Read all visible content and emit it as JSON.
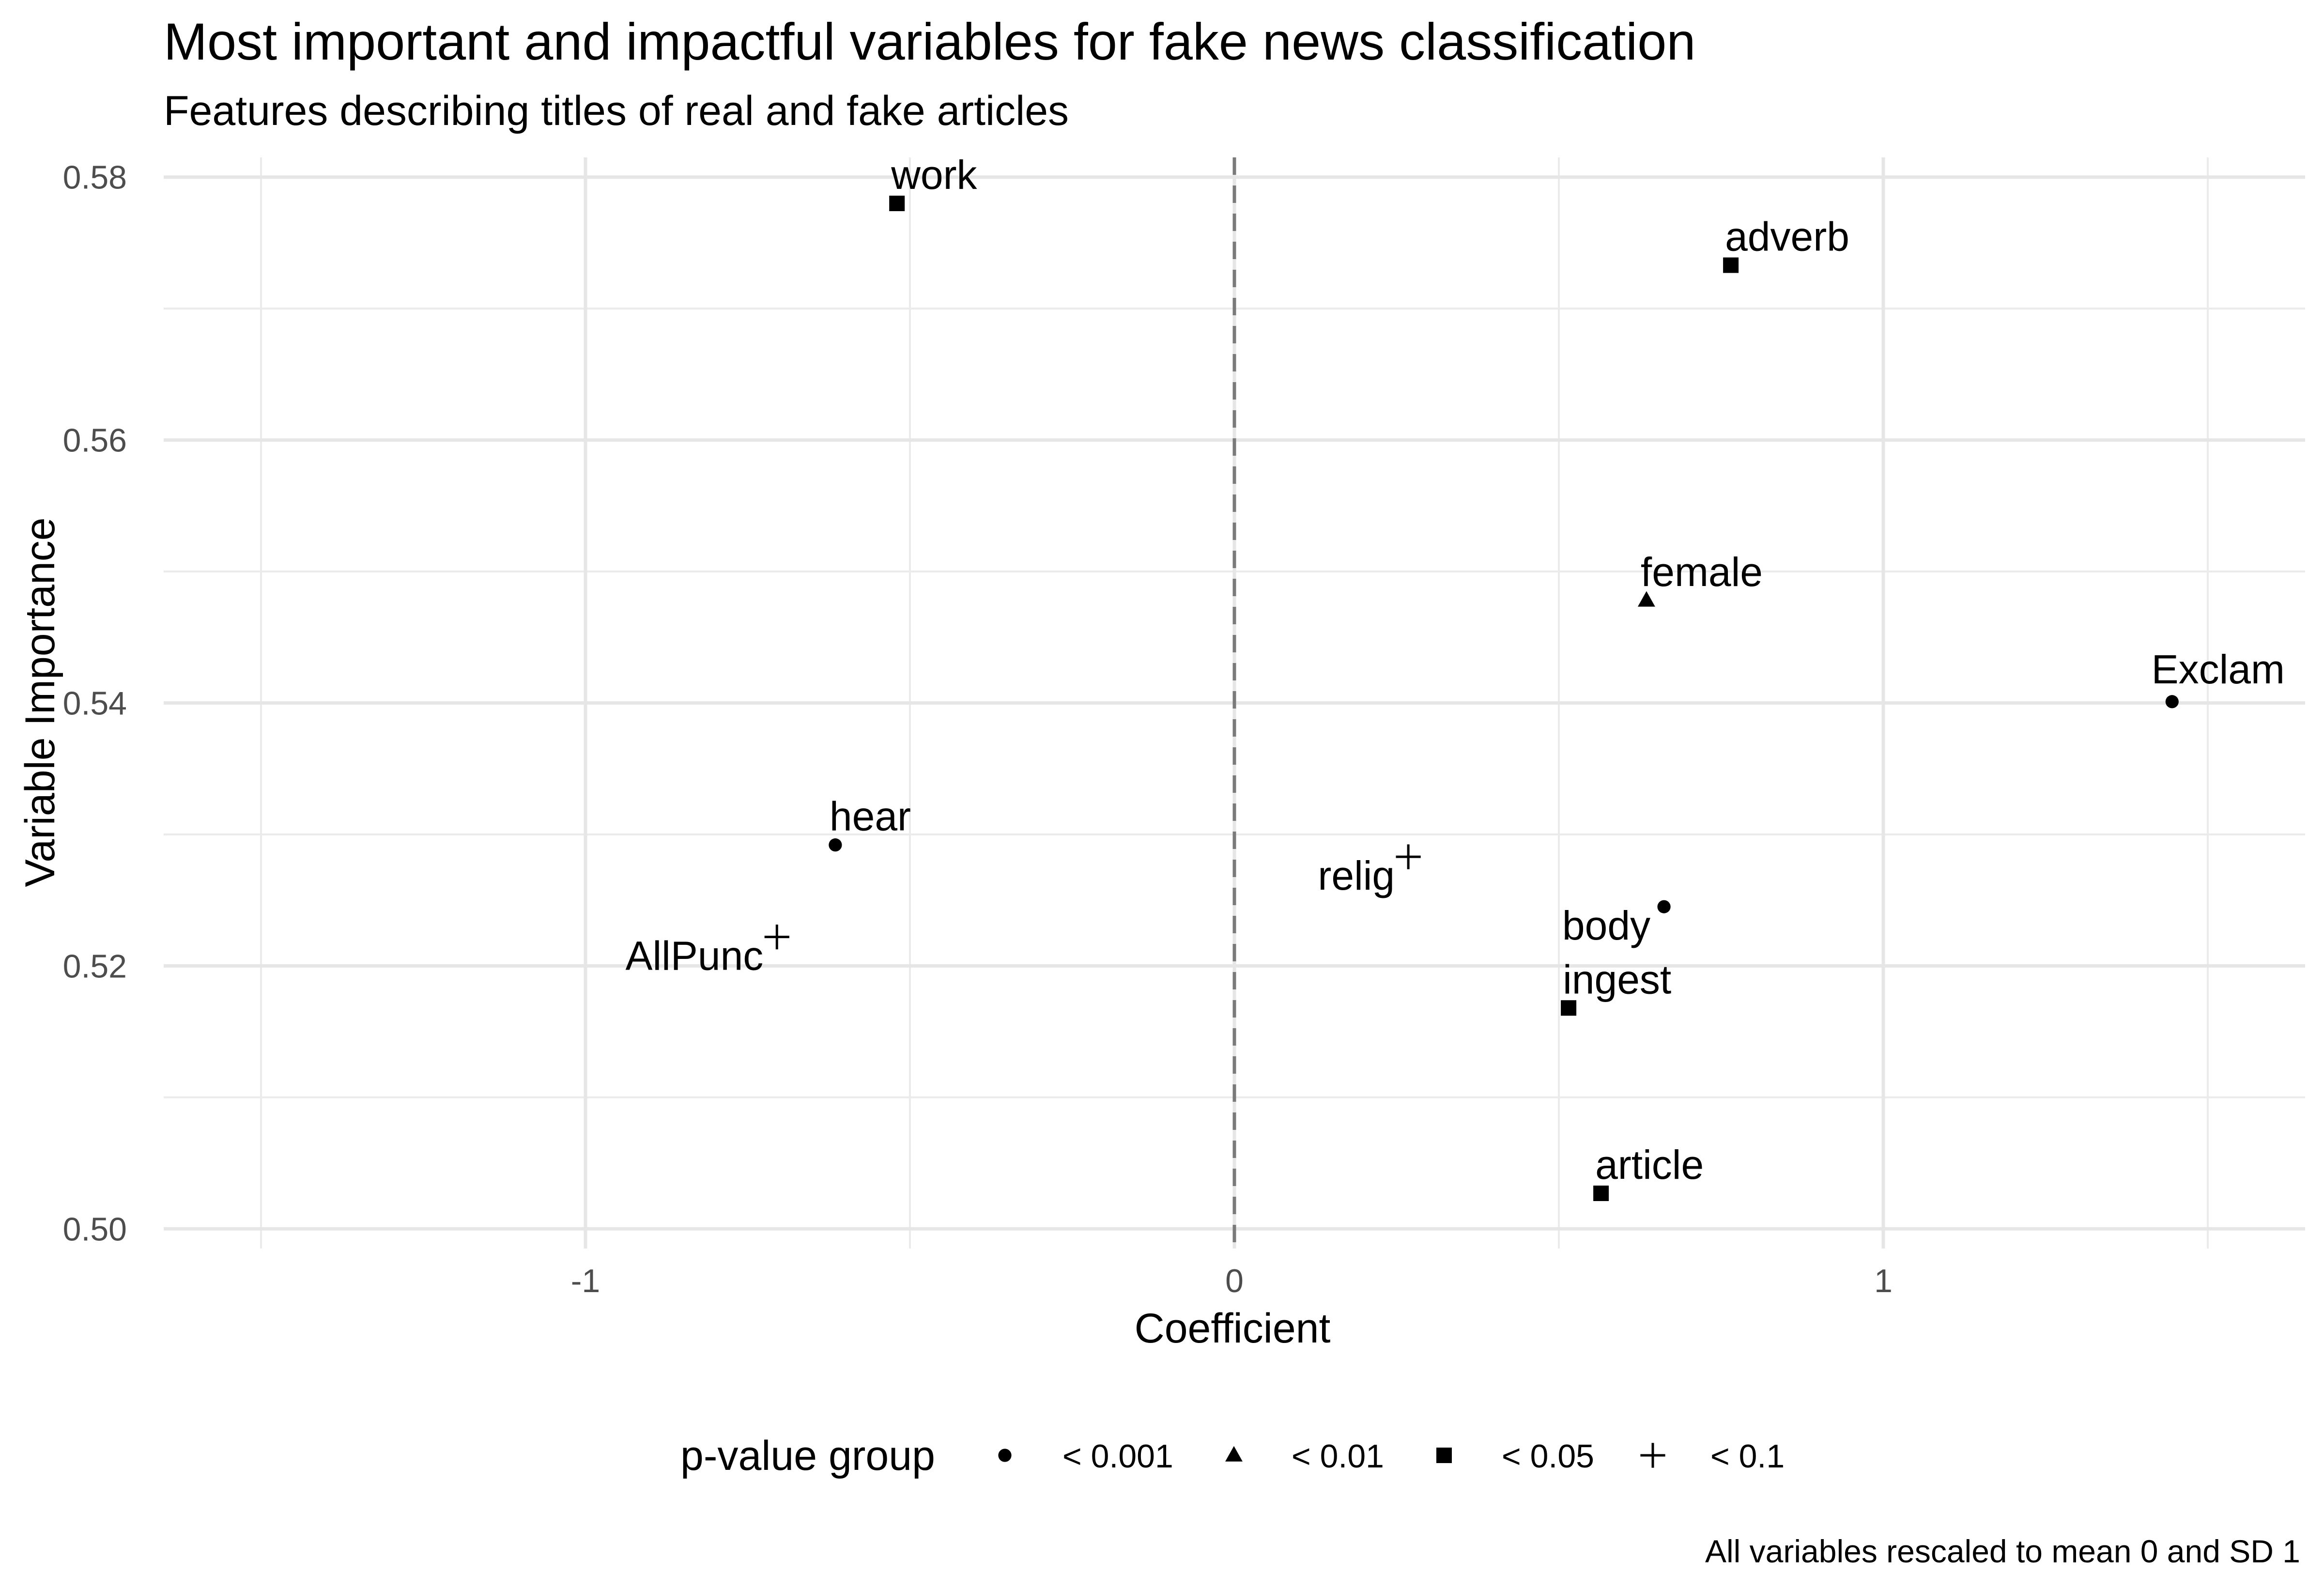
{
  "chart_data": {
    "type": "scatter",
    "title": "Most important and impactful variables for fake news classification",
    "subtitle": "Features describing titles of real and fake articles",
    "xlabel": "Coefficient",
    "ylabel": "Variable Importance",
    "caption": "All variables rescaled to mean 0 and SD 1",
    "xlim": [
      -1.65,
      1.65
    ],
    "ylim": [
      0.4985,
      0.5815
    ],
    "x_ticks": [
      {
        "v": -1,
        "label": "-1"
      },
      {
        "v": 0,
        "label": "0"
      },
      {
        "v": 1,
        "label": "1"
      }
    ],
    "y_ticks": [
      {
        "v": 0.5,
        "label": "0.50"
      },
      {
        "v": 0.52,
        "label": "0.52"
      },
      {
        "v": 0.54,
        "label": "0.54"
      },
      {
        "v": 0.56,
        "label": "0.56"
      },
      {
        "v": 0.58,
        "label": "0.58"
      }
    ],
    "x_minor": [
      -1.5,
      -0.5,
      0.5,
      1.5
    ],
    "y_minor": [
      0.51,
      0.53,
      0.55,
      0.57
    ],
    "grid": true,
    "reference_line": {
      "x": 0,
      "style": "dashed"
    },
    "legend": {
      "title": "p-value group",
      "position": "bottom",
      "items": [
        {
          "shape": "circle",
          "label": "< 0.001"
        },
        {
          "shape": "triangle",
          "label": "< 0.01"
        },
        {
          "shape": "square",
          "label": "< 0.05"
        },
        {
          "shape": "plus",
          "label": "< 0.1"
        }
      ]
    },
    "points": [
      {
        "label": "work",
        "x": -0.52,
        "y": 0.578,
        "group": "square",
        "anchor": "upper-right"
      },
      {
        "label": "adverb",
        "x": 0.765,
        "y": 0.5733,
        "group": "square",
        "anchor": "upper-right"
      },
      {
        "label": "female",
        "x": 0.635,
        "y": 0.5478,
        "group": "triangle",
        "anchor": "upper-right"
      },
      {
        "label": "Exclam",
        "x": 1.445,
        "y": 0.5401,
        "group": "circle",
        "anchor": "above"
      },
      {
        "label": "hear",
        "x": -0.615,
        "y": 0.5292,
        "group": "circle",
        "anchor": "upper-right"
      },
      {
        "label": "relig",
        "x": 0.268,
        "y": 0.5283,
        "group": "plus",
        "anchor": "lower-left"
      },
      {
        "label": "body",
        "x": 0.662,
        "y": 0.5245,
        "group": "circle",
        "anchor": "lower-left"
      },
      {
        "label": "AllPunc",
        "x": -0.705,
        "y": 0.5222,
        "group": "plus",
        "anchor": "lower-left"
      },
      {
        "label": "ingest",
        "x": 0.515,
        "y": 0.5168,
        "group": "square",
        "anchor": "upper-right"
      },
      {
        "label": "article",
        "x": 0.565,
        "y": 0.5027,
        "group": "square",
        "anchor": "upper-right"
      }
    ]
  }
}
